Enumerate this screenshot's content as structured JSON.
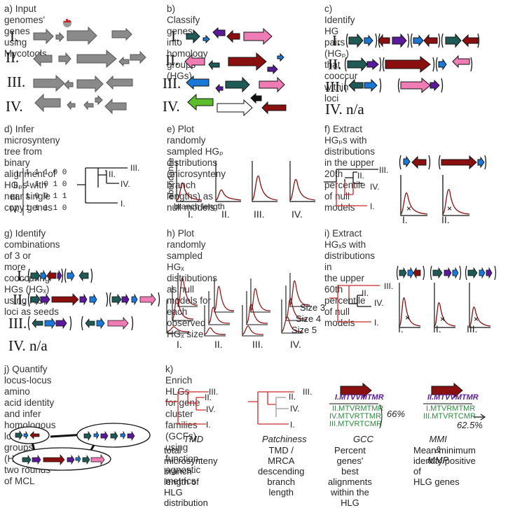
{
  "panels": {
    "a": {
      "title": "a) Input genomes' genes using\nMycotools",
      "rows": [
        "I.",
        "II.",
        "III.",
        "IV."
      ]
    },
    "b": {
      "title": "b) Classify genes into\nhomology groups (HGs)",
      "rows": [
        "I.",
        "II.",
        "III.",
        "IV."
      ]
    },
    "c": {
      "title": "c) Identify HG pairs (HGₚ) that\ncooccur within loci",
      "rows": [
        "I.",
        "II.",
        "III.",
        "IV."
      ],
      "na": "n/a"
    },
    "d": {
      "title": "d) Infer microsynteny tree from\nbinary alignment of HGₚs with\nnear single copy genes",
      "matrix": [
        {
          "label": "I.",
          "bits": "1 1 1 0 0"
        },
        {
          "label": "II.",
          "bits": "1 1 0 1 0"
        },
        {
          "label": "III.",
          "bits": "1 0 0 1 1"
        },
        {
          "label": "IV.",
          "bits": "1 1 1 1 0"
        }
      ],
      "tree_labels": [
        "III.",
        "II.",
        "IV.",
        "I."
      ]
    },
    "e": {
      "title": "e) Plot randomly sampled HGₚ\ndistributions (microsynteny\nbranch lengths) as null models",
      "ylabel": "abundance",
      "xlabel": "branch length",
      "cols": [
        "I.",
        "II.",
        "III.",
        "IV."
      ]
    },
    "f": {
      "title": "f) Extract HGₚs with distributions\nin the upper 20th percentile of null\nmodels",
      "tree_labels": [
        "III.",
        "II.",
        "IV.",
        "I."
      ],
      "cols": [
        "I.",
        "II."
      ]
    },
    "g": {
      "title": "g) Identify combinations of 3 or\nmore cooccuring HGs (HGₓ)\nusing HGₚ loci as seeds",
      "rows": [
        "I.",
        "II.",
        "III.",
        "IV."
      ],
      "na": "n/a"
    },
    "h": {
      "title": "h) Plot randomly sampled HGₓ\ndistributions as null models for\neach observed HGₓ size",
      "sizes": [
        "Size 3",
        "Size 4",
        "Size 5"
      ],
      "cols": [
        "I.",
        "II.",
        "III.",
        "IV."
      ]
    },
    "i": {
      "title": "i) Extract HGₓs with distributions in\nthe upper 60th percentile of null\nmodels",
      "tree_labels": [
        "III.",
        "II.",
        "IV.",
        "I."
      ],
      "cols": [
        "I.",
        "II.",
        "III."
      ]
    },
    "j": {
      "title": "j) Quantify locus-locus amino\nacid identity and infer\nhomologous locus groups\n(HLGs) via two rounds of MCL"
    },
    "k": {
      "title": "k) Enrich HLGs for gene cluster families (GCFs) using function-\nagnostic metrics",
      "tree_labels": [
        "III.",
        "II.",
        "IV.",
        "I."
      ],
      "tmd": {
        "name": "TMD",
        "desc": "total microsynteny\nbranch length of\nHLG distribution"
      },
      "patch": {
        "name": "Patchiness",
        "desc": "TMD / MRCA\ndescending\nbranch length"
      },
      "gcc": {
        "name": "GCC",
        "desc": "Percent genes'\nbest alignments\nwithin the HLG",
        "pct": "66%",
        "seqs": [
          "I.MTVVMTMR",
          "II.MTVRMTMR",
          "IV.MTVRTTMR",
          "III.MTVRTCMR"
        ]
      },
      "mmi": {
        "name": "MMI & MMP",
        "desc": "Mean minimum\nidentity/positive of\nHLG genes",
        "pct": "62.5%",
        "seqs": [
          "II.MTVVMTMR",
          "I.MTVRMTMR",
          "III.MTVRTCMR"
        ]
      }
    }
  },
  "colors": {
    "gray": "#8a8a8a",
    "teal": "#1f5a56",
    "blue": "#1a78d6",
    "purple": "#5a1a9a",
    "darkred": "#8a1010",
    "pink": "#f07cb6",
    "green": "#5bbd2a",
    "red": "#cc2b2b"
  }
}
